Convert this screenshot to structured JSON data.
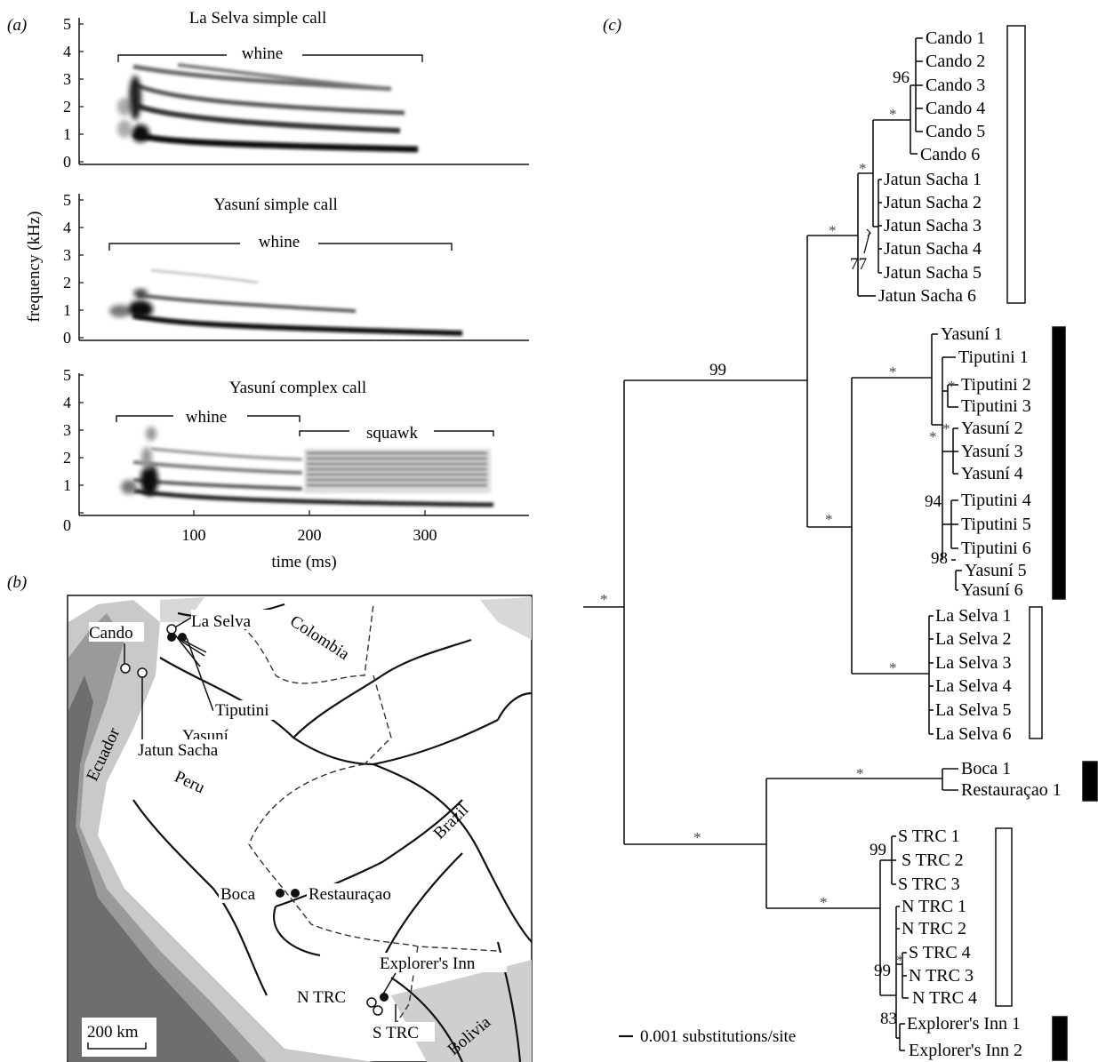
{
  "panel_labels": {
    "a": "(a)",
    "b": "(b)",
    "c": "(c)"
  },
  "spectrograms": {
    "ylabel": "frequency (kHz)",
    "xlabel": "time (ms)",
    "yticks": [
      "0",
      "1",
      "2",
      "3",
      "4",
      "5"
    ],
    "xticks": [
      "0",
      "100",
      "200",
      "300"
    ],
    "panels": [
      {
        "title": "La Selva simple call",
        "brackets": [
          "whine"
        ]
      },
      {
        "title": "Yasuní simple call",
        "brackets": [
          "whine"
        ]
      },
      {
        "title": "Yasuní complex call",
        "brackets": [
          "whine",
          "squawk"
        ]
      }
    ]
  },
  "map": {
    "countries": [
      "Colombia",
      "Ecuador",
      "Peru",
      "Brazil",
      "Bolivia"
    ],
    "sites": [
      "Cando",
      "La Selva",
      "Tiputini",
      "Yasuní",
      "Jatun Sacha",
      "Boca",
      "Restauraçao",
      "Explorer's Inn",
      "N TRC",
      "S TRC"
    ],
    "scale_label": "200 km"
  },
  "tree": {
    "scale_label": "0.001 substitutions/site",
    "support": {
      "s96": "96",
      "s77": "77",
      "s99a": "99",
      "s94": "94",
      "s98": "98",
      "s99b": "99",
      "s99c": "99",
      "s83": "83",
      "star": "*"
    },
    "tips": [
      "Cando 1",
      "Cando 2",
      "Cando 3",
      "Cando 4",
      "Cando 5",
      "Cando 6",
      "Jatun Sacha 1",
      "Jatun Sacha 2",
      "Jatun Sacha 3",
      "Jatun Sacha 4",
      "Jatun Sacha 5",
      "Jatun Sacha 6",
      "Yasuní 1",
      "Tiputini 1",
      "Tiputini 2",
      "Tiputini 3",
      "Yasuní 2",
      "Yasuní 3",
      "Yasuní 4",
      "Tiputini 4",
      "Tiputini 5",
      "Tiputini 6",
      "Yasuní 5",
      "Yasuní 6",
      "La Selva 1",
      "La Selva 2",
      "La Selva 3",
      "La Selva 4",
      "La Selva 5",
      "La Selva 6",
      "Boca 1",
      "Restauraçao 1",
      "S TRC 1",
      "S TRC 2",
      "S TRC 3",
      "N TRC 1",
      "N TRC 2",
      "S TRC 4",
      "N TRC 3",
      "N TRC 4",
      "Explorer's Inn 1",
      "Explorer's Inn 2"
    ]
  }
}
